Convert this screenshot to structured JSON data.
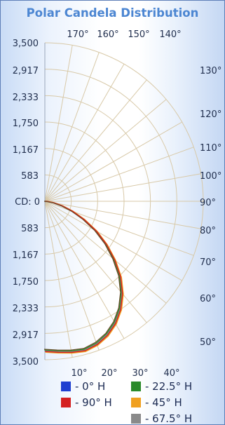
{
  "chart_data": {
    "type": "polar",
    "title": "Polar Candela Distribution",
    "radial_unit_label": "CD: 0",
    "radial_ticks": [
      "3,500",
      "2,917",
      "2,333",
      "1,750",
      "1,167",
      "583",
      "583",
      "1,167",
      "1,750",
      "2,333",
      "2,917",
      "3,500"
    ],
    "rmax": 3500,
    "top_angle_labels": [
      "170°",
      "160°",
      "150°",
      "140°"
    ],
    "right_angle_labels": [
      "130°",
      "120°",
      "110°",
      "100°",
      "90°",
      "80°",
      "70°",
      "60°",
      "50°"
    ],
    "bottom_angle_labels": [
      "10°",
      "20°",
      "30°",
      "40°"
    ],
    "series": [
      {
        "name": "- 0° H",
        "color": "#1f3fd0"
      },
      {
        "name": "- 22.5° H",
        "color": "#2a8a2a"
      },
      {
        "name": "- 90° H",
        "color": "#d42020"
      },
      {
        "name": "- 45° H",
        "color": "#f0a020"
      },
      {
        "name": "- 67.5° H",
        "color": "#8a8a8a"
      }
    ],
    "curve": {
      "angles_deg": [
        0,
        5,
        10,
        15,
        20,
        25,
        30,
        35,
        40,
        45,
        50,
        55,
        60,
        65,
        70,
        75,
        80,
        85,
        90
      ],
      "candela": [
        3300,
        3330,
        3370,
        3400,
        3350,
        3250,
        3100,
        2900,
        2650,
        2350,
        2000,
        1650,
        1300,
        950,
        650,
        400,
        200,
        60,
        0
      ]
    }
  }
}
